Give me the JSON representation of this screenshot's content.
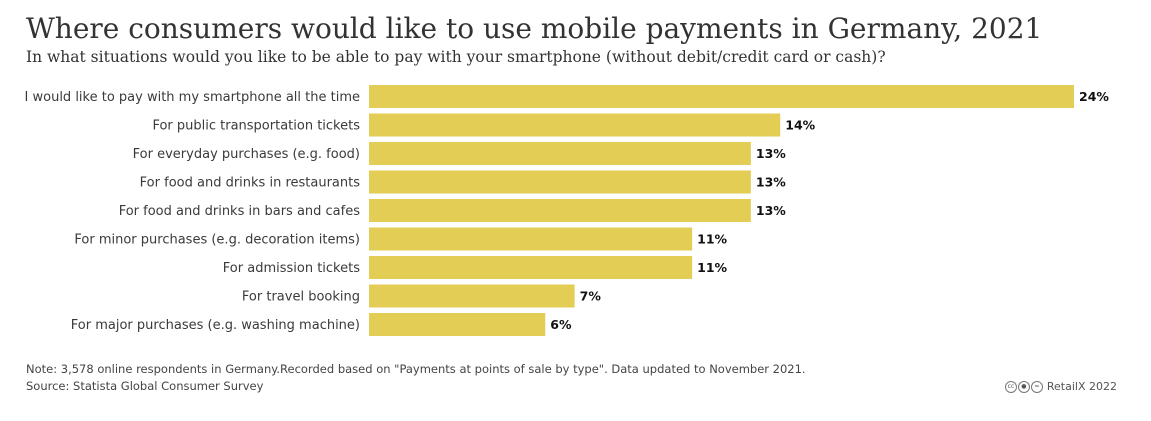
{
  "header": {
    "title": "Where consumers would like to use mobile payments in Germany, 2021",
    "subtitle": "In what situations would you like to be able to pay with your smartphone (without debit/credit card or cash)?"
  },
  "footer": {
    "note": "Note: 3,578 online respondents in Germany.Recorded based on \"Payments at points of sale by type\". Data updated to November 2021.",
    "source": "Source: Statista Global Consumer Survey",
    "credit": "RetailX 2022",
    "license_icons": [
      "cc-icon",
      "by-icon",
      "nd-icon"
    ]
  },
  "colors": {
    "bar": "#e3cd54",
    "text": "#333333"
  },
  "chart_data": {
    "type": "bar",
    "orientation": "horizontal",
    "title": "Where consumers would like to use mobile payments in Germany, 2021",
    "subtitle": "In what situations would you like to be able to pay with your smartphone (without debit/credit card or cash)?",
    "categories": [
      "I would like to pay with my smartphone all the time",
      "For public transportation tickets",
      "For everyday purchases (e.g. food)",
      "For food and drinks in restaurants",
      "For food and drinks in bars and cafes",
      "For minor purchases (e.g. decoration items)",
      "For admission tickets",
      "For travel booking",
      "For major purchases (e.g. washing machine)"
    ],
    "values": [
      24,
      14,
      13,
      13,
      13,
      11,
      11,
      7,
      6
    ],
    "value_labels": [
      "24%",
      "14%",
      "13%",
      "13%",
      "13%",
      "11%",
      "11%",
      "7%",
      "6%"
    ],
    "unit": "%",
    "xlim": [
      0,
      24
    ],
    "xlabel": "",
    "ylabel": "",
    "grid": false,
    "legend": "none"
  }
}
